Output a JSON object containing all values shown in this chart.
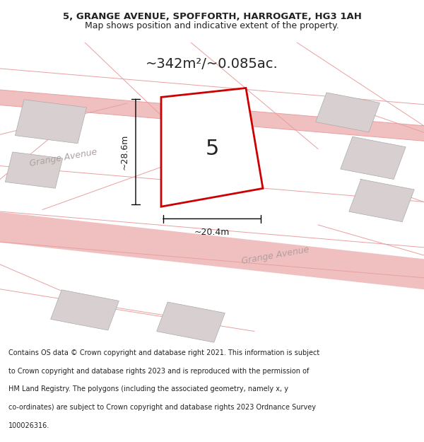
{
  "title_line1": "5, GRANGE AVENUE, SPOFFORTH, HARROGATE, HG3 1AH",
  "title_line2": "Map shows position and indicative extent of the property.",
  "area_text": "~342m²/~0.085ac.",
  "number_label": "5",
  "dim_height": "~28.6m",
  "dim_width": "~20.4m",
  "footer_text": "Contains OS data © Crown copyright and database right 2021. This information is subject to Crown copyright and database rights 2023 and is reproduced with the permission of HM Land Registry. The polygons (including the associated geometry, namely x, y co-ordinates) are subject to Crown copyright and database rights 2023 Ordnance Survey 100026316.",
  "bg_color": "#f7f0f0",
  "map_bg": "#ffffff",
  "road_color": "#f0c0c0",
  "building_color": "#d8d0d0",
  "highlight_color": "#cc0000",
  "text_color": "#222222",
  "road_label_color": "#b0a0a0",
  "title_bg": "#ffffff",
  "footer_bg": "#ffffff"
}
